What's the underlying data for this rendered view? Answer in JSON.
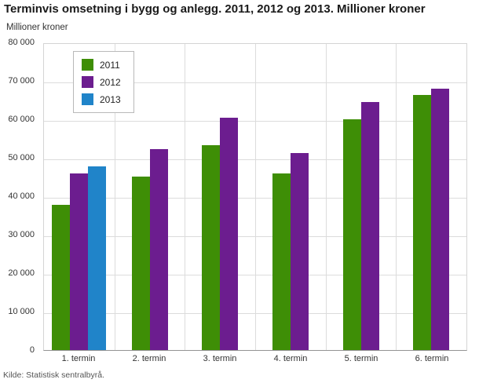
{
  "title": "Terminvis omsetning i bygg og anlegg. 2011, 2012 og 2013. Millioner kroner",
  "source": "Kilde: Statistisk sentralbyrå.",
  "chart_data": {
    "type": "bar",
    "title": "Terminvis omsetning i bygg og anlegg. 2011, 2012 og 2013. Millioner kroner",
    "xlabel": "",
    "ylabel": "Millioner kroner",
    "ylim": [
      0,
      80000
    ],
    "ytick_step": 10000,
    "grid": true,
    "legend_position": "top-left",
    "categories": [
      "1. termin",
      "2. termin",
      "3. termin",
      "4. termin",
      "5. termin",
      "6. termin"
    ],
    "series": [
      {
        "name": "2011",
        "color": "#3e8e06",
        "values": [
          38000,
          45300,
          53500,
          46100,
          60400,
          66700
        ]
      },
      {
        "name": "2012",
        "color": "#6c1d8f",
        "values": [
          46200,
          52500,
          60700,
          51400,
          64900,
          68400
        ]
      },
      {
        "name": "2013",
        "color": "#2084c9",
        "values": [
          48000,
          null,
          null,
          null,
          null,
          null
        ]
      }
    ]
  }
}
